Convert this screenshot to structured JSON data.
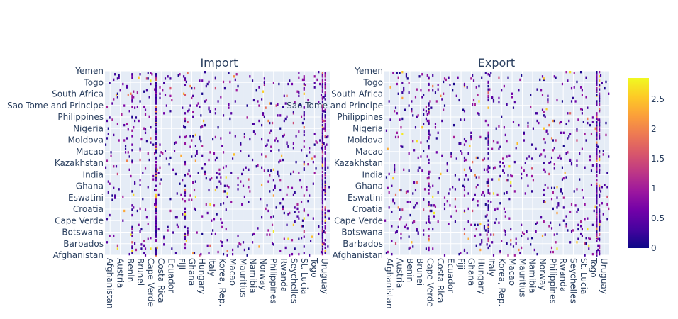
{
  "chart_data": {
    "type": "heatmap",
    "colorscale": [
      "#0d0887",
      "#46039f",
      "#7201a8",
      "#9c179e",
      "#bd3786",
      "#d8576b",
      "#ed7953",
      "#fb9f3a",
      "#fdca26",
      "#f0f921"
    ],
    "colorbar": {
      "min": 0,
      "max": 2.86,
      "ticks": [
        0,
        0.5,
        1,
        1.5,
        2,
        2.5
      ]
    },
    "panels": [
      {
        "title": "Import",
        "x_ticks": [
          "Afghanistan",
          "Austria",
          "Benin",
          "Brunei",
          "Cape Verde",
          "Costa Rica",
          "Ecuador",
          "Fiji",
          "Ghana",
          "Hungary",
          "Italy",
          "Korea, Rep.",
          "Macao",
          "Mauritius",
          "Namibia",
          "Norway",
          "Philippines",
          "Rwanda",
          "Seychelles",
          "St. Lucia",
          "Togo",
          "Uruguay"
        ],
        "y_ticks": [
          "Afghanistan",
          "Barbados",
          "Botswana",
          "Cape Verde",
          "Croatia",
          "Eswatini",
          "Ghana",
          "India",
          "Kazakhstan",
          "Macao",
          "Moldova",
          "Nigeria",
          "Philippines",
          "Sao Tome and Principe",
          "South Africa",
          "Togo",
          "Yemen"
        ]
      },
      {
        "title": "Export",
        "x_ticks": [
          "Afghanistan",
          "Austria",
          "Benin",
          "Brunei",
          "Cape Verde",
          "Costa Rica",
          "Ecuador",
          "Fiji",
          "Ghana",
          "Hungary",
          "Italy",
          "Korea, Rep.",
          "Macao",
          "Mauritius",
          "Namibia",
          "Norway",
          "Philippines",
          "Rwanda",
          "Seychelles",
          "St. Lucia",
          "Togo",
          "Uruguay"
        ],
        "y_ticks": [
          "Afghanistan",
          "Barbados",
          "Botswana",
          "Cape Verde",
          "Croatia",
          "Eswatini",
          "Ghana",
          "India",
          "Kazakhstan",
          "Macao",
          "Moldova",
          "Nigeria",
          "Philippines",
          "Sao Tome and Principe",
          "South Africa",
          "Togo",
          "Yemen"
        ]
      }
    ]
  }
}
